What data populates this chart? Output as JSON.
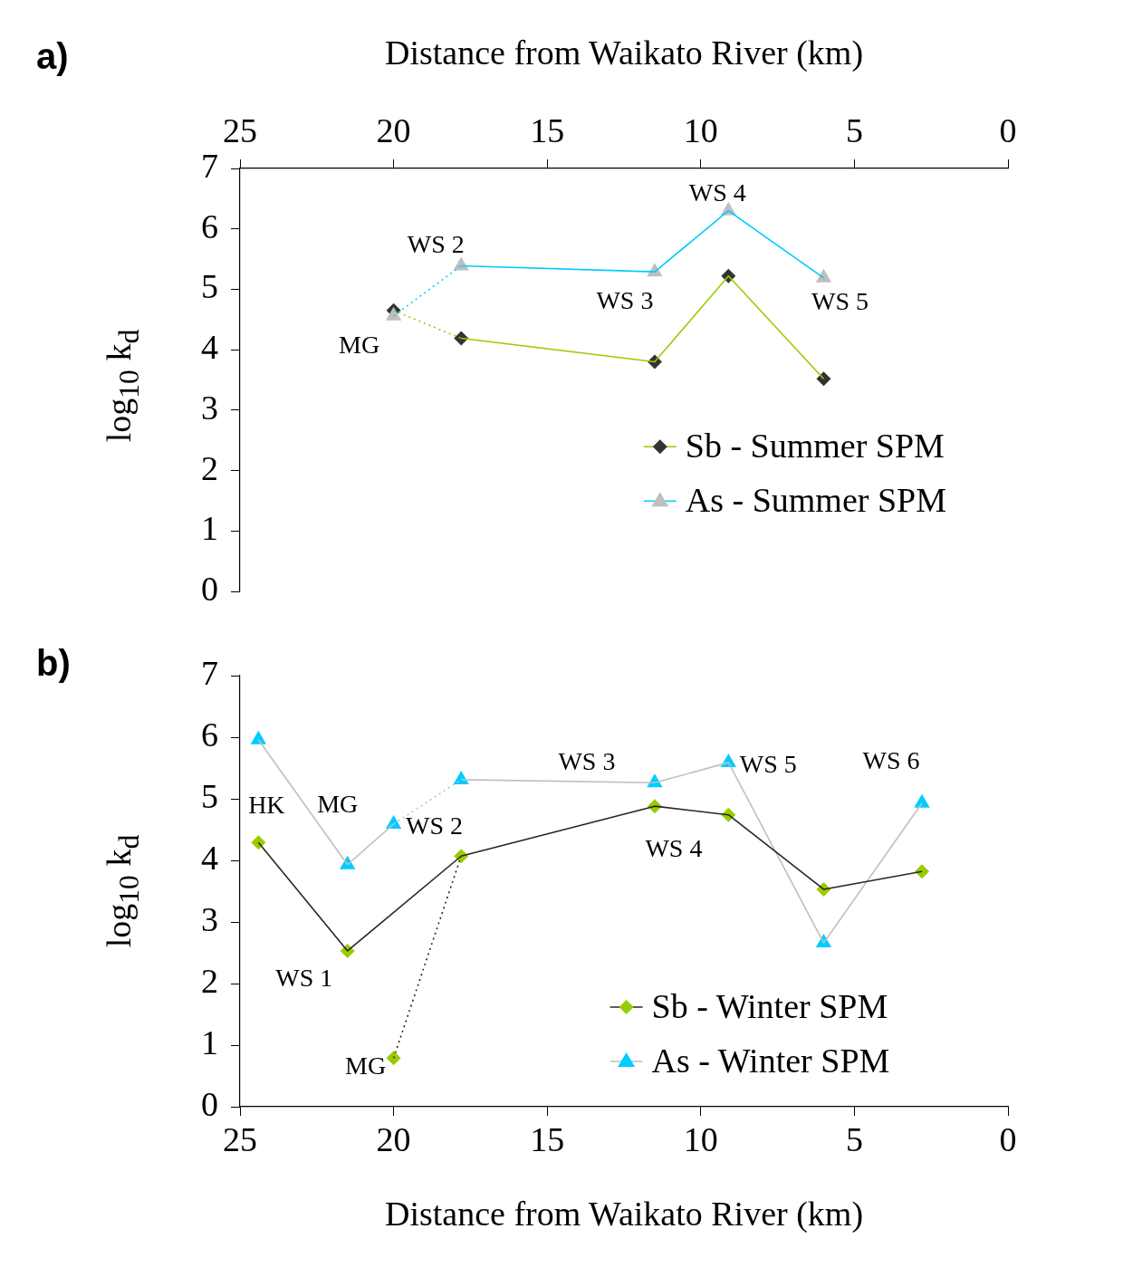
{
  "chart_data": [
    {
      "type": "line",
      "title": "a)",
      "xlabel": "Distance from Waikato River (km)",
      "ylabel": "log$_{10}$ k$_{d}$",
      "xlim": [
        25,
        0
      ],
      "xticks": [
        25,
        20,
        15,
        10,
        5,
        0
      ],
      "ylim": [
        0,
        7
      ],
      "yticks": [
        0,
        1,
        2,
        3,
        4,
        5,
        6,
        7
      ],
      "grid": false,
      "legend": "bottom right",
      "series": [
        {
          "name": "Sb - Summer SPM",
          "type": "line",
          "marker": "diamond",
          "color": "#99cc00",
          "x": [
            17.8,
            11.5,
            9.1,
            6.0
          ],
          "values": [
            4.19,
            3.8,
            5.22,
            3.52
          ]
        },
        {
          "name": "As - Summer SPM",
          "type": "line",
          "marker": "triangle",
          "color": "#00ccff",
          "x": [
            17.8,
            11.5,
            9.1,
            6.0
          ],
          "values": [
            5.39,
            5.29,
            6.3,
            5.19
          ]
        },
        {
          "type": "line",
          "line_style": "dotted",
          "marker": "none",
          "color": "#99cc00",
          "x": [
            20,
            17.8
          ],
          "values": [
            4.65,
            4.19
          ]
        },
        {
          "type": "line",
          "line_style": "dotted",
          "marker": "none",
          "color": "#00ccff",
          "x": [
            20,
            17.8
          ],
          "values": [
            4.56,
            5.39
          ]
        },
        {
          "type": "scatter",
          "marker": "triangle",
          "color": "#bfbfbf",
          "x": [
            20
          ],
          "values": [
            4.56
          ]
        },
        {
          "type": "scatter",
          "marker": "diamond",
          "color": "#333333",
          "x": [
            20
          ],
          "values": [
            4.65
          ]
        }
      ],
      "annotations": [
        {
          "text": "MG",
          "x": 20,
          "y": 4.65
        },
        {
          "text": "WS 2",
          "x": 17.8,
          "y": 5.39
        },
        {
          "text": "WS 3",
          "x": 11.5,
          "y": 5.29
        },
        {
          "text": "WS 4",
          "x": 9.1,
          "y": 6.3
        },
        {
          "text": "WS 5",
          "x": 6.0,
          "y": 5.19
        }
      ]
    },
    {
      "type": "line",
      "title": "b)",
      "xlabel": "Distance from Waikato River (km)",
      "ylabel": "log$_{10}$ k$_{d}$",
      "xlim": [
        25,
        0
      ],
      "xticks": [
        25,
        20,
        15,
        10,
        5,
        0
      ],
      "ylim": [
        0,
        7
      ],
      "yticks": [
        0,
        1,
        2,
        3,
        4,
        5,
        6,
        7
      ],
      "grid": false,
      "legend": "bottom right",
      "series": [
        {
          "name": "Sb - Winter SPM",
          "type": "line",
          "marker": "diamond",
          "color": "#262626",
          "x": [
            24.4,
            21.5,
            17.8,
            11.5,
            9.1,
            6.0,
            2.8
          ],
          "values": [
            4.29,
            2.53,
            4.07,
            4.88,
            4.74,
            3.53,
            3.82
          ]
        },
        {
          "name": "As - Winter SPM",
          "type": "line",
          "marker": "triangle",
          "color": "#bfbfbf",
          "x": [
            24.4,
            21.5,
            20
          ],
          "values": [
            5.96,
            3.93,
            4.59
          ]
        },
        {
          "type": "line",
          "marker": "triangle",
          "color": "#bfbfbf",
          "x": [
            17.8,
            11.5,
            9.1,
            6.0,
            2.8
          ],
          "values": [
            5.31,
            5.26,
            5.59,
            2.66,
            4.93
          ]
        },
        {
          "type": "line",
          "line_style": "dotted",
          "marker": "none",
          "color": "#262626",
          "x": [
            20,
            17.8
          ],
          "values": [
            0.79,
            4.07
          ]
        },
        {
          "type": "line",
          "line_style": "dotted",
          "marker": "none",
          "color": "#bfbfbf",
          "x": [
            20,
            17.8
          ],
          "values": [
            4.59,
            5.31
          ]
        },
        {
          "type": "scatter",
          "marker": "diamond",
          "color": "#99cc00",
          "x": [
            20
          ],
          "values": [
            0.79
          ]
        }
      ],
      "annotations": [
        {
          "text": "HK",
          "x": 24.4,
          "y": 4.29
        },
        {
          "text": "MG",
          "x": 21.5,
          "y": 3.93
        },
        {
          "text": "WS 2",
          "x": 20,
          "y": 4.59
        },
        {
          "text": "WS 3",
          "x": 11.5,
          "y": 5.26
        },
        {
          "text": "WS 5",
          "x": 9.1,
          "y": 5.59
        },
        {
          "text": "WS 6",
          "x": 2.8,
          "y": 4.93
        },
        {
          "text": "WS 4",
          "x": 11.5,
          "y": 4.88
        },
        {
          "text": "WS 1",
          "x": 21.5,
          "y": 2.53
        },
        {
          "text": "MG",
          "x": 20,
          "y": 0.79
        }
      ]
    }
  ]
}
